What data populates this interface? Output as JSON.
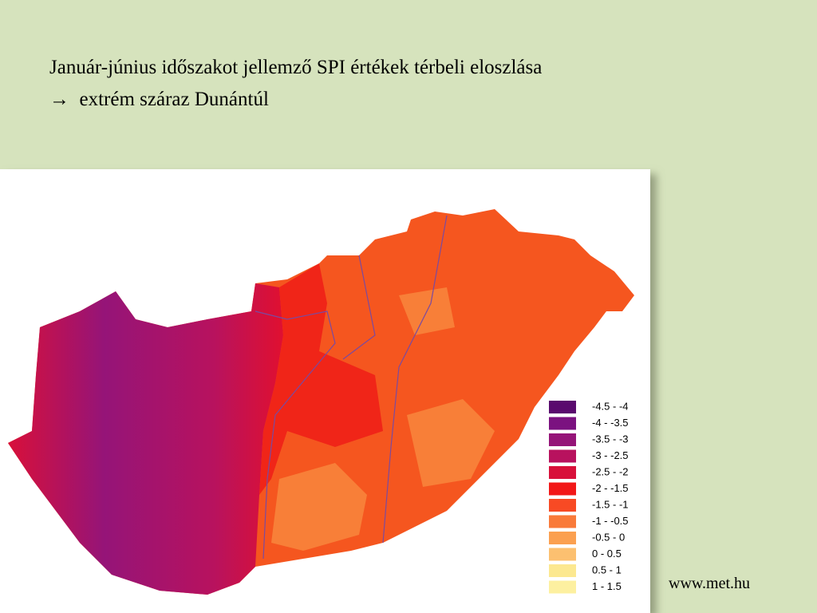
{
  "title": "Január-június időszakot jellemző SPI értékek térbeli eloszlása",
  "subtitle": "→  extrém száraz Dunántúl",
  "legend": [
    {
      "label": "-4.5 - -4",
      "color": "#5a0a6e"
    },
    {
      "label": "-4 - -3.5",
      "color": "#7b1280"
    },
    {
      "label": "-3.5 - -3",
      "color": "#951478"
    },
    {
      "label": "-3 - -2.5",
      "color": "#b8125e"
    },
    {
      "label": "-2.5 - -2",
      "color": "#d8103a"
    },
    {
      "label": "-2 - -1.5",
      "color": "#f21818"
    },
    {
      "label": "-1.5 - -1",
      "color": "#f84a24"
    },
    {
      "label": "-1 - -0.5",
      "color": "#f97a3a"
    },
    {
      "label": "-0.5 - 0",
      "color": "#fba050"
    },
    {
      "label": "0 - 0.5",
      "color": "#fcc070"
    },
    {
      "label": "0.5 - 1",
      "color": "#fce890"
    },
    {
      "label": "1 - 1.5",
      "color": "#fdf0a0"
    }
  ],
  "footer": "www.met.hu"
}
